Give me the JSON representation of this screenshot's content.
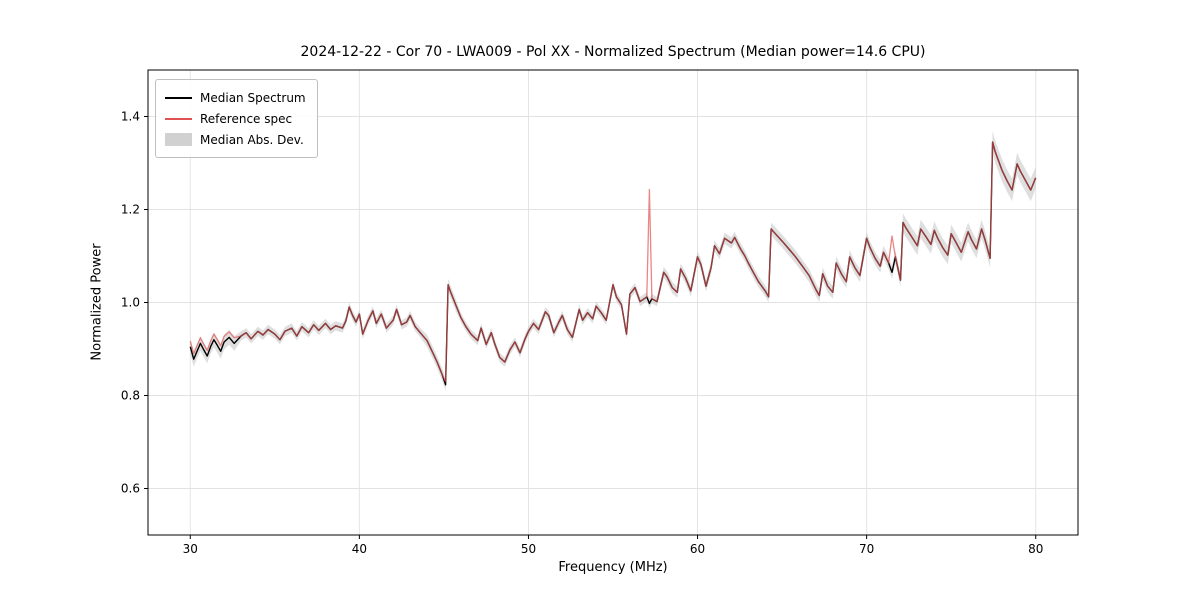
{
  "chart_data": {
    "type": "line",
    "title": "2024-12-22 - Cor 70 - LWA009 - Pol XX - Normalized Spectrum (Median power=14.6 CPU)",
    "xlabel": "Frequency (MHz)",
    "ylabel": "Normalized Power",
    "xlim": [
      27.5,
      82.5
    ],
    "ylim": [
      0.5,
      1.5
    ],
    "xticks": [
      30,
      40,
      50,
      60,
      70,
      80
    ],
    "yticks": [
      0.6,
      0.8,
      1.0,
      1.2,
      1.4
    ],
    "grid": true,
    "legend": {
      "position": "upper left",
      "entries": [
        {
          "label": "Median Spectrum",
          "color": "#000000",
          "type": "line"
        },
        {
          "label": "Reference spec",
          "color": "#e05252",
          "type": "line"
        },
        {
          "label": "Median Abs. Dev.",
          "color": "#c9c9c9",
          "type": "patch"
        }
      ]
    },
    "x": [
      30.0,
      30.2,
      30.4,
      30.6,
      30.8,
      31.0,
      31.2,
      31.4,
      31.6,
      31.8,
      32.0,
      32.3,
      32.6,
      33.0,
      33.3,
      33.6,
      34.0,
      34.3,
      34.6,
      35.0,
      35.3,
      35.6,
      36.0,
      36.3,
      36.6,
      37.0,
      37.3,
      37.6,
      38.0,
      38.3,
      38.6,
      39.0,
      39.2,
      39.4,
      39.6,
      39.8,
      40.0,
      40.2,
      40.5,
      40.8,
      41.0,
      41.3,
      41.6,
      42.0,
      42.2,
      42.5,
      42.8,
      43.0,
      43.3,
      43.6,
      44.0,
      44.3,
      44.6,
      44.9,
      45.1,
      45.25,
      45.4,
      45.7,
      46.0,
      46.3,
      46.6,
      47.0,
      47.2,
      47.5,
      47.8,
      48.0,
      48.3,
      48.6,
      48.9,
      49.2,
      49.5,
      49.8,
      50.0,
      50.3,
      50.6,
      51.0,
      51.2,
      51.5,
      51.8,
      52.0,
      52.3,
      52.6,
      53.0,
      53.2,
      53.5,
      53.8,
      54.0,
      54.3,
      54.6,
      55.0,
      55.2,
      55.5,
      55.8,
      56.0,
      56.3,
      56.6,
      57.0,
      57.15,
      57.3,
      57.6,
      58.0,
      58.2,
      58.5,
      58.8,
      59.0,
      59.3,
      59.6,
      60.0,
      60.2,
      60.5,
      60.8,
      61.0,
      61.3,
      61.6,
      62.0,
      62.2,
      62.5,
      62.8,
      63.0,
      63.3,
      63.6,
      64.0,
      64.2,
      64.35,
      64.6,
      65.0,
      65.4,
      65.8,
      66.2,
      66.6,
      67.0,
      67.2,
      67.4,
      67.7,
      68.0,
      68.2,
      68.5,
      68.8,
      69.0,
      69.3,
      69.6,
      70.0,
      70.2,
      70.5,
      70.8,
      71.0,
      71.3,
      71.5,
      71.7,
      72.0,
      72.15,
      72.3,
      72.6,
      73.0,
      73.2,
      73.5,
      73.8,
      74.0,
      74.2,
      74.5,
      74.8,
      75.0,
      75.3,
      75.6,
      76.0,
      76.2,
      76.5,
      76.8,
      77.0,
      77.3,
      77.45,
      77.6,
      78.0,
      78.3,
      78.6,
      78.9,
      79.1,
      79.4,
      79.7,
      80.0
    ],
    "series": [
      {
        "name": "Median Spectrum",
        "color": "#000000",
        "values": [
          0.905,
          0.878,
          0.895,
          0.912,
          0.898,
          0.885,
          0.905,
          0.92,
          0.908,
          0.895,
          0.915,
          0.925,
          0.912,
          0.928,
          0.935,
          0.922,
          0.938,
          0.93,
          0.942,
          0.932,
          0.92,
          0.938,
          0.945,
          0.928,
          0.948,
          0.935,
          0.952,
          0.94,
          0.955,
          0.942,
          0.95,
          0.945,
          0.96,
          0.99,
          0.972,
          0.958,
          0.975,
          0.932,
          0.96,
          0.982,
          0.955,
          0.975,
          0.945,
          0.962,
          0.985,
          0.952,
          0.958,
          0.972,
          0.948,
          0.935,
          0.918,
          0.895,
          0.872,
          0.845,
          0.823,
          1.038,
          1.022,
          0.995,
          0.968,
          0.948,
          0.932,
          0.918,
          0.945,
          0.91,
          0.935,
          0.912,
          0.882,
          0.872,
          0.898,
          0.915,
          0.892,
          0.922,
          0.938,
          0.955,
          0.942,
          0.98,
          0.972,
          0.935,
          0.958,
          0.972,
          0.942,
          0.925,
          0.985,
          0.962,
          0.978,
          0.965,
          0.992,
          0.978,
          0.962,
          1.038,
          1.012,
          0.995,
          0.932,
          1.018,
          1.032,
          1.002,
          1.012,
          0.998,
          1.008,
          1.002,
          1.065,
          1.055,
          1.032,
          1.022,
          1.072,
          1.052,
          1.025,
          1.098,
          1.082,
          1.035,
          1.075,
          1.122,
          1.105,
          1.138,
          1.128,
          1.14,
          1.118,
          1.1,
          1.085,
          1.065,
          1.045,
          1.025,
          1.012,
          1.158,
          1.148,
          1.132,
          1.115,
          1.098,
          1.078,
          1.058,
          1.028,
          1.015,
          1.062,
          1.035,
          1.022,
          1.085,
          1.062,
          1.045,
          1.098,
          1.075,
          1.058,
          1.138,
          1.118,
          1.095,
          1.078,
          1.108,
          1.085,
          1.065,
          1.098,
          1.048,
          1.172,
          1.162,
          1.145,
          1.122,
          1.158,
          1.142,
          1.125,
          1.155,
          1.138,
          1.118,
          1.102,
          1.148,
          1.128,
          1.108,
          1.152,
          1.135,
          1.115,
          1.158,
          1.135,
          1.095,
          1.345,
          1.325,
          1.285,
          1.262,
          1.242,
          1.298,
          1.282,
          1.262,
          1.242,
          1.268
        ]
      },
      {
        "name": "Reference spec",
        "color": "#e05252",
        "values": [
          0.917,
          0.89,
          0.907,
          0.924,
          0.91,
          0.897,
          0.917,
          0.932,
          0.92,
          0.907,
          0.927,
          0.937,
          0.924,
          0.928,
          0.935,
          0.922,
          0.938,
          0.93,
          0.942,
          0.932,
          0.92,
          0.938,
          0.945,
          0.928,
          0.948,
          0.935,
          0.952,
          0.94,
          0.955,
          0.942,
          0.95,
          0.945,
          0.96,
          0.99,
          0.972,
          0.958,
          0.975,
          0.932,
          0.96,
          0.982,
          0.955,
          0.975,
          0.945,
          0.962,
          0.985,
          0.952,
          0.958,
          0.972,
          0.948,
          0.935,
          0.918,
          0.895,
          0.872,
          0.845,
          0.83,
          1.038,
          1.022,
          0.995,
          0.968,
          0.948,
          0.932,
          0.918,
          0.945,
          0.91,
          0.935,
          0.912,
          0.882,
          0.872,
          0.898,
          0.915,
          0.892,
          0.922,
          0.938,
          0.955,
          0.942,
          0.98,
          0.972,
          0.935,
          0.958,
          0.972,
          0.942,
          0.925,
          0.985,
          0.962,
          0.978,
          0.965,
          0.992,
          0.978,
          0.962,
          1.038,
          1.012,
          0.995,
          0.932,
          1.018,
          1.032,
          1.002,
          1.012,
          1.243,
          1.008,
          1.002,
          1.065,
          1.055,
          1.032,
          1.022,
          1.072,
          1.052,
          1.025,
          1.098,
          1.082,
          1.035,
          1.075,
          1.122,
          1.105,
          1.138,
          1.128,
          1.14,
          1.118,
          1.1,
          1.085,
          1.065,
          1.045,
          1.025,
          1.012,
          1.158,
          1.148,
          1.132,
          1.115,
          1.098,
          1.078,
          1.058,
          1.028,
          1.015,
          1.062,
          1.035,
          1.022,
          1.085,
          1.062,
          1.045,
          1.098,
          1.075,
          1.058,
          1.138,
          1.118,
          1.095,
          1.078,
          1.108,
          1.085,
          1.143,
          1.098,
          1.048,
          1.172,
          1.162,
          1.145,
          1.122,
          1.158,
          1.142,
          1.125,
          1.155,
          1.138,
          1.118,
          1.102,
          1.148,
          1.128,
          1.108,
          1.152,
          1.135,
          1.115,
          1.158,
          1.135,
          1.095,
          1.345,
          1.325,
          1.285,
          1.262,
          1.242,
          1.298,
          1.282,
          1.262,
          1.242,
          1.268
        ]
      }
    ],
    "band": {
      "name": "Median Abs. Dev.",
      "color": "#c9c9c9",
      "half_width": [
        0.016,
        0.016,
        0.016,
        0.016,
        0.016,
        0.016,
        0.016,
        0.016,
        0.016,
        0.016,
        0.016,
        0.016,
        0.016,
        0.01,
        0.01,
        0.01,
        0.01,
        0.01,
        0.01,
        0.01,
        0.01,
        0.01,
        0.01,
        0.01,
        0.01,
        0.01,
        0.01,
        0.01,
        0.01,
        0.01,
        0.01,
        0.01,
        0.01,
        0.01,
        0.01,
        0.01,
        0.01,
        0.01,
        0.01,
        0.01,
        0.01,
        0.01,
        0.01,
        0.01,
        0.01,
        0.01,
        0.01,
        0.01,
        0.01,
        0.01,
        0.013,
        0.013,
        0.013,
        0.013,
        0.013,
        0.013,
        0.013,
        0.013,
        0.01,
        0.01,
        0.01,
        0.01,
        0.01,
        0.01,
        0.01,
        0.01,
        0.01,
        0.01,
        0.01,
        0.01,
        0.01,
        0.01,
        0.01,
        0.01,
        0.01,
        0.01,
        0.01,
        0.01,
        0.01,
        0.01,
        0.01,
        0.01,
        0.01,
        0.01,
        0.01,
        0.01,
        0.01,
        0.01,
        0.01,
        0.01,
        0.01,
        0.01,
        0.01,
        0.01,
        0.01,
        0.01,
        0.01,
        0.01,
        0.01,
        0.01,
        0.012,
        0.012,
        0.012,
        0.012,
        0.012,
        0.012,
        0.012,
        0.012,
        0.012,
        0.012,
        0.012,
        0.012,
        0.012,
        0.012,
        0.012,
        0.012,
        0.012,
        0.012,
        0.012,
        0.012,
        0.012,
        0.012,
        0.012,
        0.014,
        0.014,
        0.014,
        0.014,
        0.014,
        0.014,
        0.014,
        0.014,
        0.014,
        0.014,
        0.014,
        0.014,
        0.014,
        0.014,
        0.014,
        0.014,
        0.014,
        0.014,
        0.014,
        0.014,
        0.014,
        0.014,
        0.014,
        0.014,
        0.014,
        0.014,
        0.014,
        0.02,
        0.02,
        0.02,
        0.02,
        0.02,
        0.02,
        0.02,
        0.02,
        0.02,
        0.02,
        0.02,
        0.02,
        0.02,
        0.02,
        0.02,
        0.02,
        0.02,
        0.02,
        0.02,
        0.02,
        0.024,
        0.024,
        0.024,
        0.024,
        0.024,
        0.024,
        0.024,
        0.024,
        0.024,
        0.024
      ]
    }
  }
}
